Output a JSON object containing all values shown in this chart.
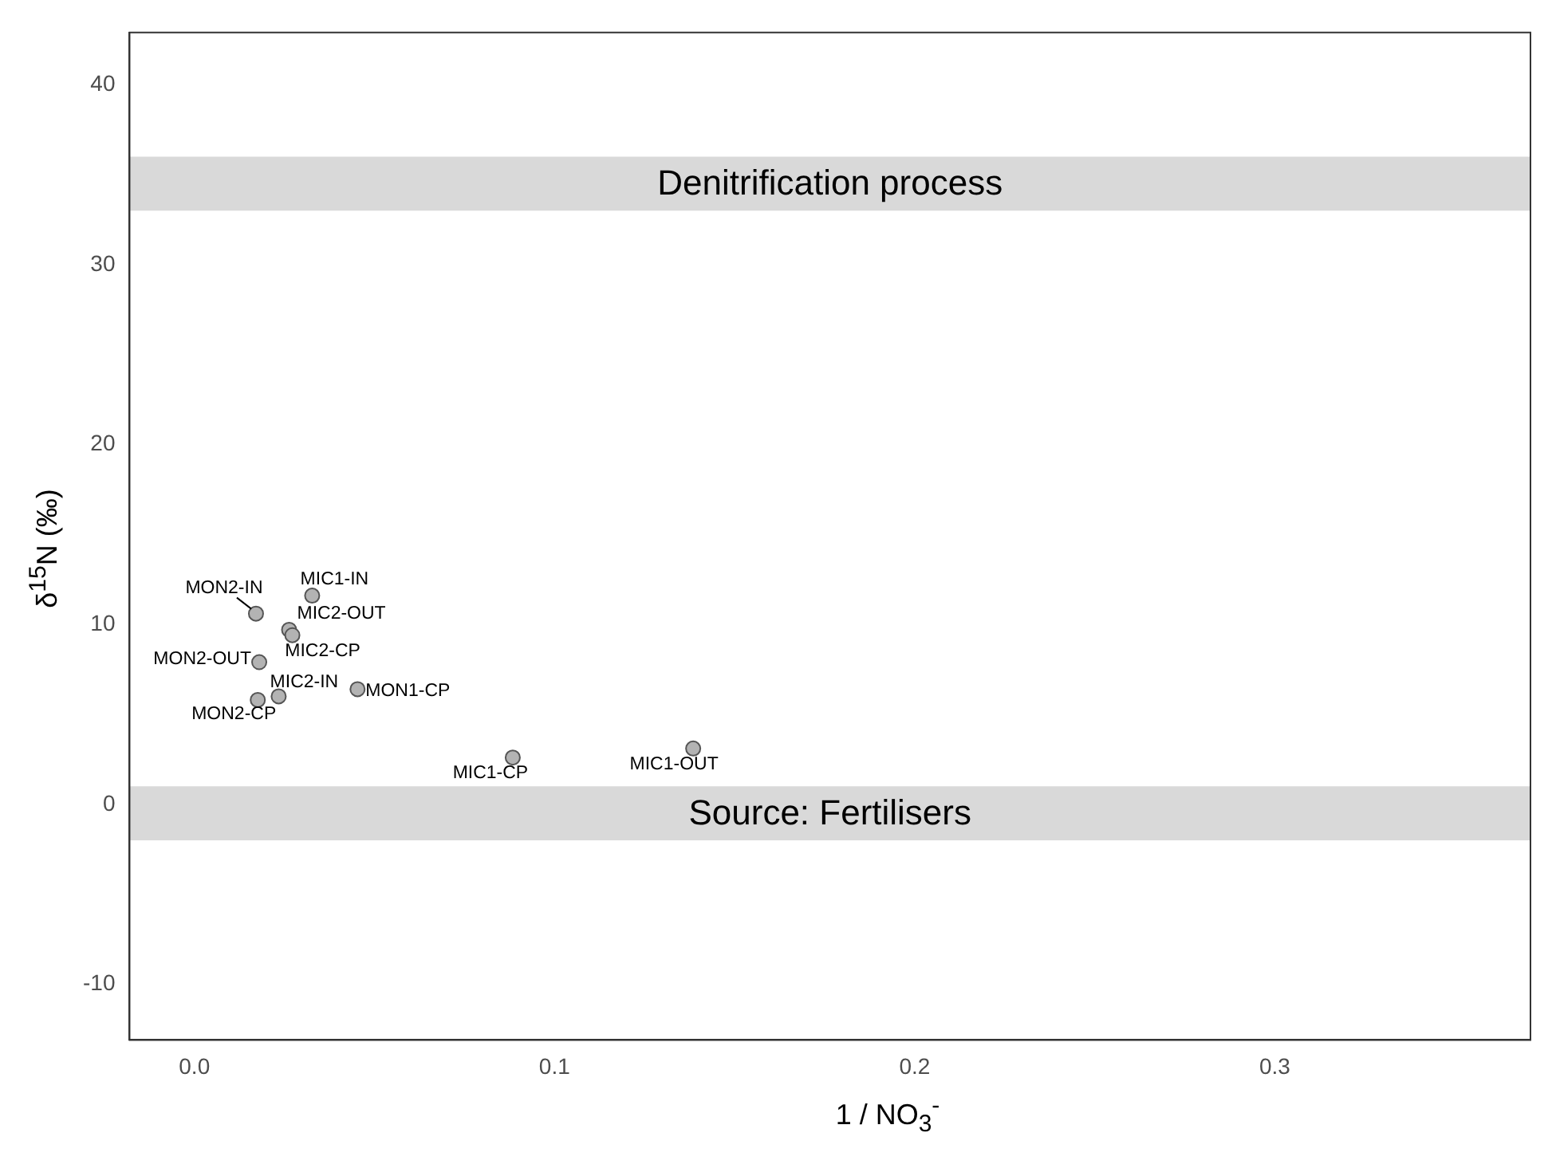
{
  "chart_data": {
    "type": "scatter",
    "xlabel": "1 / NO$_{3}$$^{-}$",
    "ylabel": "δ$^{15}$N  (‰)",
    "x": [
      0.0327,
      0.0171,
      0.0263,
      0.0272,
      0.018,
      0.0234,
      0.0176,
      0.0453,
      0.0884,
      0.1385
    ],
    "series": [
      {
        "color": "#b3b3b3",
        "values": [
          11.6,
          10.6,
          9.7,
          9.4,
          7.9,
          6.0,
          5.8,
          6.4,
          2.6,
          3.1
        ]
      }
    ],
    "marker": "circle",
    "xlim": [
      -0.018,
      0.371
    ],
    "xticks": [
      {
        "value": 0,
        "label": "0.0"
      },
      0.1,
      0.2,
      0.3
    ],
    "ylim": [
      -13.1,
      42.9
    ],
    "yticks": [
      -10,
      0,
      10,
      20,
      30,
      40
    ],
    "grid": false,
    "legend": false,
    "bands": [
      {
        "axis": "y",
        "from": 33,
        "to": 36,
        "label": "Denitrification process",
        "color": "#d9d9d9"
      },
      {
        "axis": "y",
        "from": -2,
        "to": 1,
        "label": "Source: Fertilisers",
        "color": "#d9d9d9"
      }
    ],
    "annotations": [
      {
        "text": "MIC1-IN",
        "x": 0.0327,
        "y": 11.6
      },
      {
        "text": "MON2-IN",
        "x": 0.0171,
        "y": 10.6
      },
      {
        "text": "MIC2-OUT",
        "x": 0.0263,
        "y": 9.7
      },
      {
        "text": "MIC2-CP",
        "x": 0.0272,
        "y": 9.4
      },
      {
        "text": "MON2-OUT",
        "x": 0.018,
        "y": 7.9
      },
      {
        "text": "MIC2-IN",
        "x": 0.0234,
        "y": 6.0
      },
      {
        "text": "MON2-CP",
        "x": 0.0176,
        "y": 5.8
      },
      {
        "text": "MON1-CP",
        "x": 0.0453,
        "y": 6.4
      },
      {
        "text": "MIC1-CP",
        "x": 0.0884,
        "y": 2.6
      },
      {
        "text": "MIC1-OUT",
        "x": 0.1385,
        "y": 3.1
      }
    ]
  }
}
